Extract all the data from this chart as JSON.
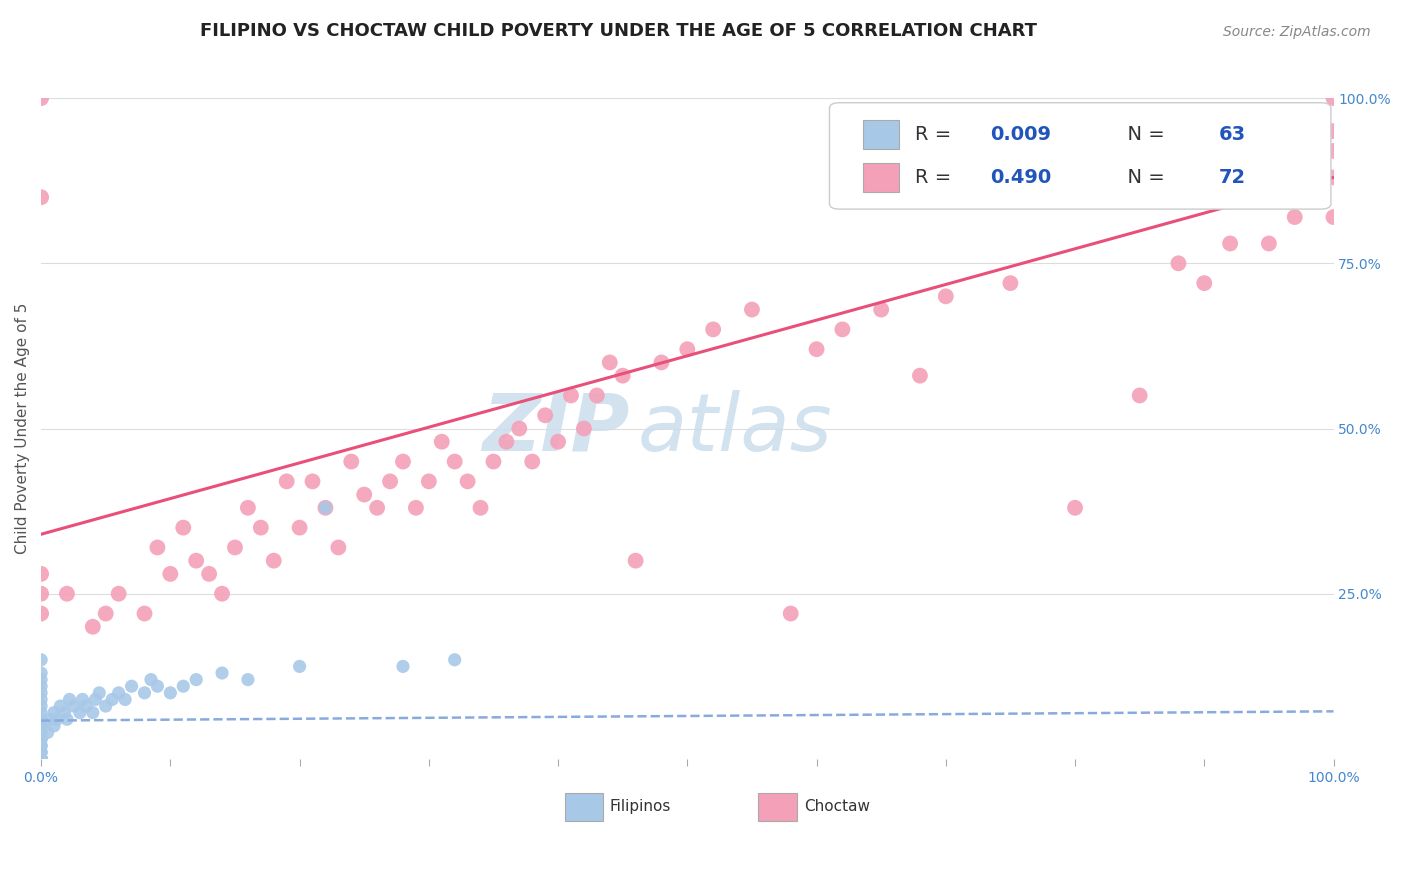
{
  "title": "FILIPINO VS CHOCTAW CHILD POVERTY UNDER THE AGE OF 5 CORRELATION CHART",
  "source": "Source: ZipAtlas.com",
  "ylabel": "Child Poverty Under the Age of 5",
  "xlim": [
    0.0,
    1.0
  ],
  "ylim": [
    0.0,
    1.0
  ],
  "filipino_R": "0.009",
  "filipino_N": "63",
  "choctaw_R": "0.490",
  "choctaw_N": "72",
  "filipino_color": "#a8c8e8",
  "choctaw_color": "#f4a0b8",
  "filipino_line_color": "#88aadd",
  "choctaw_line_color": "#e8507a",
  "watermark_zip": "ZIP",
  "watermark_atlas": "atlas",
  "watermark_color": "#ccdded",
  "background_color": "#ffffff",
  "grid_color": "#dddddd",
  "title_fontsize": 13,
  "label_fontsize": 11,
  "tick_fontsize": 10,
  "source_fontsize": 10,
  "filipino_x": [
    0.0,
    0.0,
    0.0,
    0.0,
    0.0,
    0.0,
    0.0,
    0.0,
    0.0,
    0.0,
    0.0,
    0.0,
    0.0,
    0.0,
    0.0,
    0.0,
    0.0,
    0.0,
    0.0,
    0.0,
    0.0,
    0.0,
    0.0,
    0.0,
    0.0,
    0.0,
    0.0,
    0.0,
    0.0,
    0.0,
    0.005,
    0.007,
    0.01,
    0.01,
    0.012,
    0.015,
    0.018,
    0.02,
    0.022,
    0.025,
    0.03,
    0.032,
    0.035,
    0.04,
    0.042,
    0.045,
    0.05,
    0.055,
    0.06,
    0.065,
    0.07,
    0.08,
    0.085,
    0.09,
    0.1,
    0.11,
    0.12,
    0.14,
    0.16,
    0.2,
    0.22,
    0.28,
    0.32
  ],
  "filipino_y": [
    0.0,
    0.0,
    0.0,
    0.0,
    0.0,
    0.0,
    0.0,
    0.0,
    0.0,
    0.0,
    0.01,
    0.01,
    0.02,
    0.02,
    0.03,
    0.03,
    0.04,
    0.04,
    0.05,
    0.05,
    0.06,
    0.06,
    0.07,
    0.08,
    0.09,
    0.1,
    0.11,
    0.12,
    0.13,
    0.15,
    0.04,
    0.06,
    0.05,
    0.07,
    0.06,
    0.08,
    0.07,
    0.06,
    0.09,
    0.08,
    0.07,
    0.09,
    0.08,
    0.07,
    0.09,
    0.1,
    0.08,
    0.09,
    0.1,
    0.09,
    0.11,
    0.1,
    0.12,
    0.11,
    0.1,
    0.11,
    0.12,
    0.13,
    0.12,
    0.14,
    0.38,
    0.14,
    0.15
  ],
  "choctaw_x": [
    0.0,
    0.0,
    0.0,
    0.0,
    0.0,
    0.02,
    0.04,
    0.05,
    0.06,
    0.08,
    0.09,
    0.1,
    0.11,
    0.12,
    0.13,
    0.14,
    0.15,
    0.16,
    0.17,
    0.18,
    0.19,
    0.2,
    0.21,
    0.22,
    0.23,
    0.24,
    0.25,
    0.26,
    0.27,
    0.28,
    0.29,
    0.3,
    0.31,
    0.32,
    0.33,
    0.34,
    0.35,
    0.36,
    0.37,
    0.38,
    0.39,
    0.4,
    0.41,
    0.42,
    0.43,
    0.44,
    0.45,
    0.46,
    0.48,
    0.5,
    0.52,
    0.55,
    0.58,
    0.6,
    0.62,
    0.65,
    0.68,
    0.7,
    0.75,
    0.8,
    0.85,
    0.88,
    0.9,
    0.92,
    0.95,
    0.97,
    0.99,
    1.0,
    1.0,
    1.0,
    1.0,
    1.0
  ],
  "choctaw_y": [
    1.0,
    0.85,
    0.28,
    0.25,
    0.22,
    0.25,
    0.2,
    0.22,
    0.25,
    0.22,
    0.32,
    0.28,
    0.35,
    0.3,
    0.28,
    0.25,
    0.32,
    0.38,
    0.35,
    0.3,
    0.42,
    0.35,
    0.42,
    0.38,
    0.32,
    0.45,
    0.4,
    0.38,
    0.42,
    0.45,
    0.38,
    0.42,
    0.48,
    0.45,
    0.42,
    0.38,
    0.45,
    0.48,
    0.5,
    0.45,
    0.52,
    0.48,
    0.55,
    0.5,
    0.55,
    0.6,
    0.58,
    0.3,
    0.6,
    0.62,
    0.65,
    0.68,
    0.22,
    0.62,
    0.65,
    0.68,
    0.58,
    0.7,
    0.72,
    0.38,
    0.55,
    0.75,
    0.72,
    0.78,
    0.78,
    0.82,
    0.85,
    0.95,
    0.92,
    0.88,
    0.82,
    1.0
  ],
  "fil_line_x": [
    0.0,
    1.0
  ],
  "fil_line_y": [
    0.058,
    0.072
  ],
  "choc_line_x": [
    0.0,
    1.0
  ],
  "choc_line_y": [
    0.34,
    0.88
  ]
}
